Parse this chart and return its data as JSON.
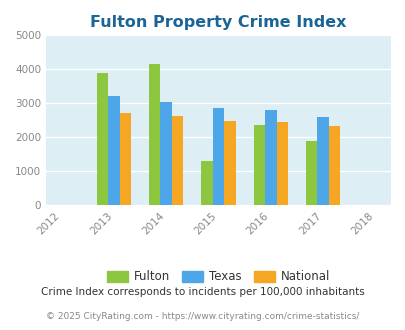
{
  "title": "Fulton Property Crime Index",
  "all_years": [
    "2012",
    "2013",
    "2014",
    "2015",
    "2016",
    "2017",
    "2018"
  ],
  "data_years": [
    2013,
    2014,
    2015,
    2016,
    2017
  ],
  "fulton": [
    3900,
    4150,
    1300,
    2350,
    1900
  ],
  "texas": [
    3230,
    3040,
    2850,
    2800,
    2600
  ],
  "national": [
    2730,
    2620,
    2490,
    2460,
    2340
  ],
  "fulton_color": "#8dc63f",
  "texas_color": "#4da6e8",
  "national_color": "#f5a623",
  "bg_color": "#ddeef4",
  "ylim": [
    0,
    5000
  ],
  "yticks": [
    0,
    1000,
    2000,
    3000,
    4000,
    5000
  ],
  "title_color": "#1a6496",
  "title_fontsize": 11.5,
  "legend_labels": [
    "Fulton",
    "Texas",
    "National"
  ],
  "footnote1": "Crime Index corresponds to incidents per 100,000 inhabitants",
  "footnote2": "© 2025 CityRating.com - https://www.cityrating.com/crime-statistics/",
  "bar_width": 0.22,
  "grid_color": "#ffffff"
}
